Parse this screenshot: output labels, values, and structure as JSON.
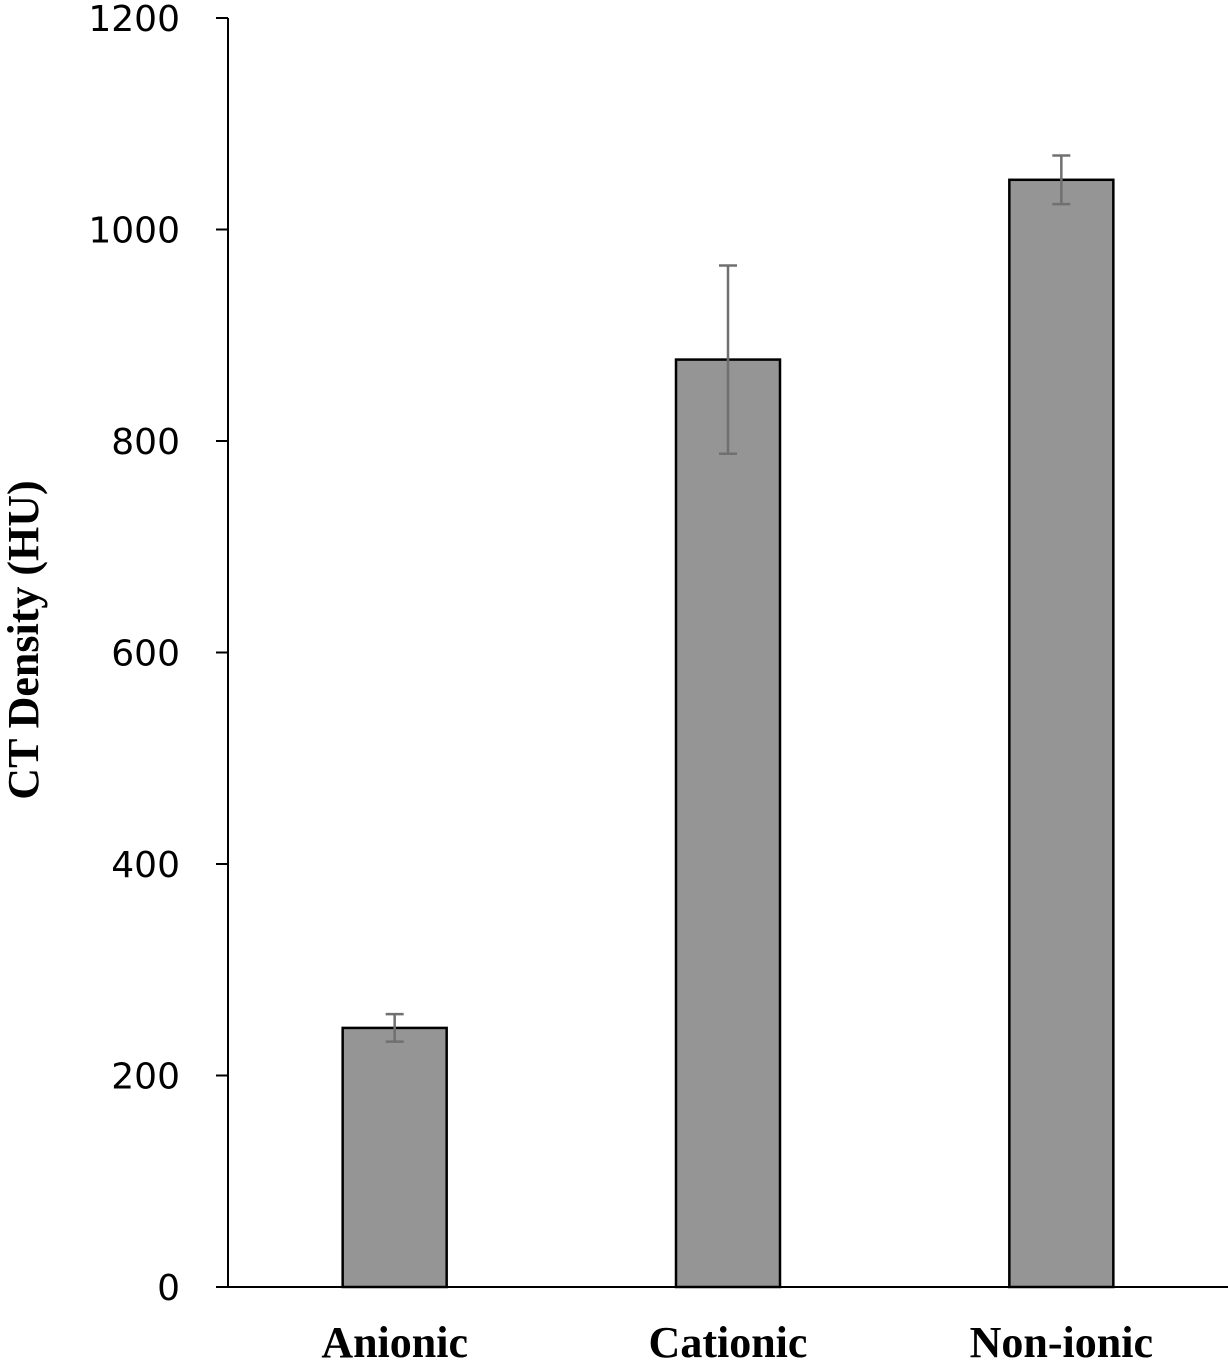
{
  "chart_data": {
    "type": "bar",
    "title": "",
    "xlabel": "",
    "ylabel": "CT Density (HU)",
    "ylim": [
      0,
      1200
    ],
    "yticks": [
      0,
      200,
      400,
      600,
      800,
      1000,
      1200
    ],
    "categories": [
      "Anionic",
      "Cationic",
      "Non-ionic"
    ],
    "values": [
      245,
      877,
      1047
    ],
    "errors": [
      13,
      89,
      23
    ],
    "grid": false,
    "legend": "none",
    "colors": {
      "bar": "#959595",
      "bar_stroke": "#000000",
      "error_bar": "#707070",
      "axis": "#000000"
    }
  }
}
